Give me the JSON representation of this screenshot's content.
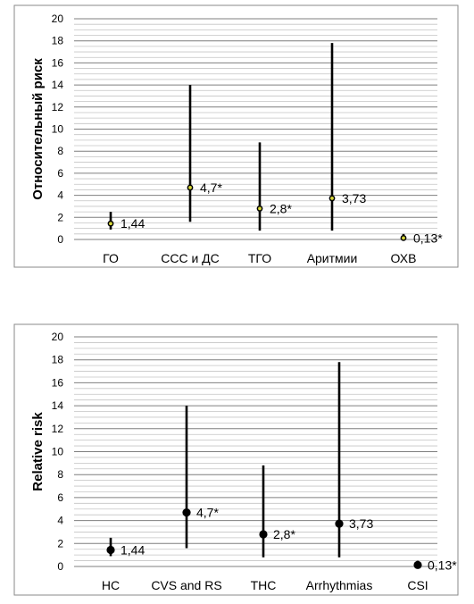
{
  "chart_data": [
    {
      "type": "scatter",
      "language": "ru",
      "title": "",
      "xlabel": "",
      "ylabel": "Относительный риск",
      "ylim": [
        0,
        20
      ],
      "ytick_step": 2,
      "ytick_labels": [
        "0",
        "2",
        "4",
        "6",
        "8",
        "10",
        "12",
        "14",
        "16",
        "18",
        "20"
      ],
      "grid": true,
      "legend": "none",
      "marker_color": "#d8d83a",
      "categories": [
        "ГО",
        "ССС и ДС",
        "ТГО",
        "Аритмии",
        "ОХВ"
      ],
      "values": [
        1.44,
        4.7,
        2.8,
        3.73,
        0.13
      ],
      "ci_low": [
        0.9,
        1.6,
        0.8,
        0.8,
        0.0
      ],
      "ci_high": [
        2.5,
        14.0,
        8.8,
        17.8,
        0.5
      ],
      "data_labels": [
        "1,44",
        "4,7*",
        "2,8*",
        "3,73",
        "0,13*"
      ]
    },
    {
      "type": "scatter",
      "language": "en",
      "title": "",
      "xlabel": "",
      "ylabel": "Relative risk",
      "ylim": [
        0,
        20
      ],
      "ytick_step": 2,
      "ytick_labels": [
        "0",
        "2",
        "4",
        "6",
        "8",
        "10",
        "12",
        "14",
        "16",
        "18",
        "20"
      ],
      "grid": true,
      "legend": "none",
      "marker_color": "#000000",
      "categories": [
        "HC",
        "CVS and RS",
        "THC",
        "Arrhythmias",
        "CSI"
      ],
      "values": [
        1.44,
        4.7,
        2.8,
        3.73,
        0.13
      ],
      "ci_low": [
        0.9,
        1.6,
        0.8,
        0.8,
        0.0
      ],
      "ci_high": [
        2.5,
        14.0,
        8.8,
        17.8,
        0.5
      ],
      "data_labels": [
        "1,44",
        "4,7*",
        "2,8*",
        "3,73",
        "0,13*"
      ]
    }
  ]
}
